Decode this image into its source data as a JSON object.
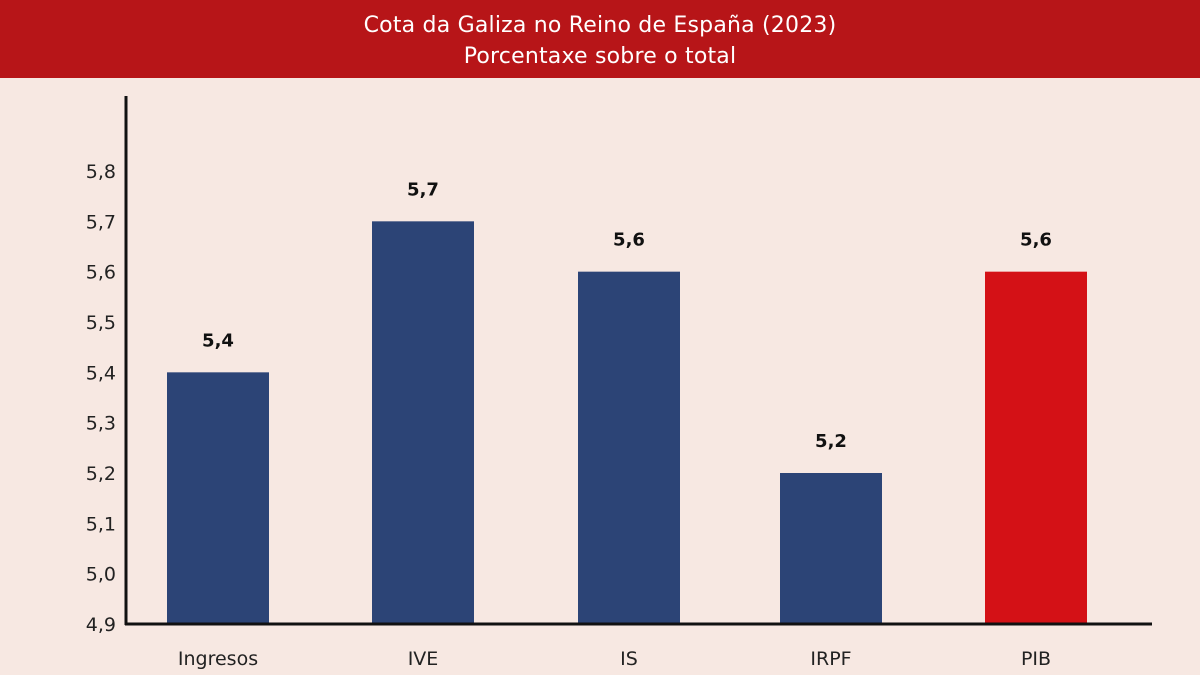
{
  "title": "Cota da Galiza no Reino de España (2023)",
  "subtitle": "Porcentaxe sobre o total",
  "colors": {
    "banner": "#b71518",
    "background": "#f7e8e2",
    "bar_default": "#2c4476",
    "bar_highlight": "#d41116"
  },
  "chart_data": {
    "type": "bar",
    "title": "Cota da Galiza no Reino de España (2023)",
    "subtitle": "Porcentaxe sobre o total",
    "categories": [
      "Ingresos",
      "IVE",
      "IS",
      "IRPF",
      "PIB"
    ],
    "values": [
      5.4,
      5.7,
      5.6,
      5.2,
      5.6
    ],
    "value_labels": [
      "5,4",
      "5,7",
      "5,6",
      "5,2",
      "5,6"
    ],
    "highlight": [
      "PIB"
    ],
    "yticks": [
      4.9,
      5.0,
      5.1,
      5.2,
      5.3,
      5.4,
      5.5,
      5.6,
      5.7,
      5.8
    ],
    "ytick_labels": [
      "4,9",
      "5,0",
      "5,1",
      "5,2",
      "5,3",
      "5,4",
      "5,5",
      "5,6",
      "5,7",
      "5,8"
    ],
    "ylim": [
      4.9,
      5.8
    ],
    "xlabel": "",
    "ylabel": "",
    "grid": false,
    "legend": "none"
  }
}
